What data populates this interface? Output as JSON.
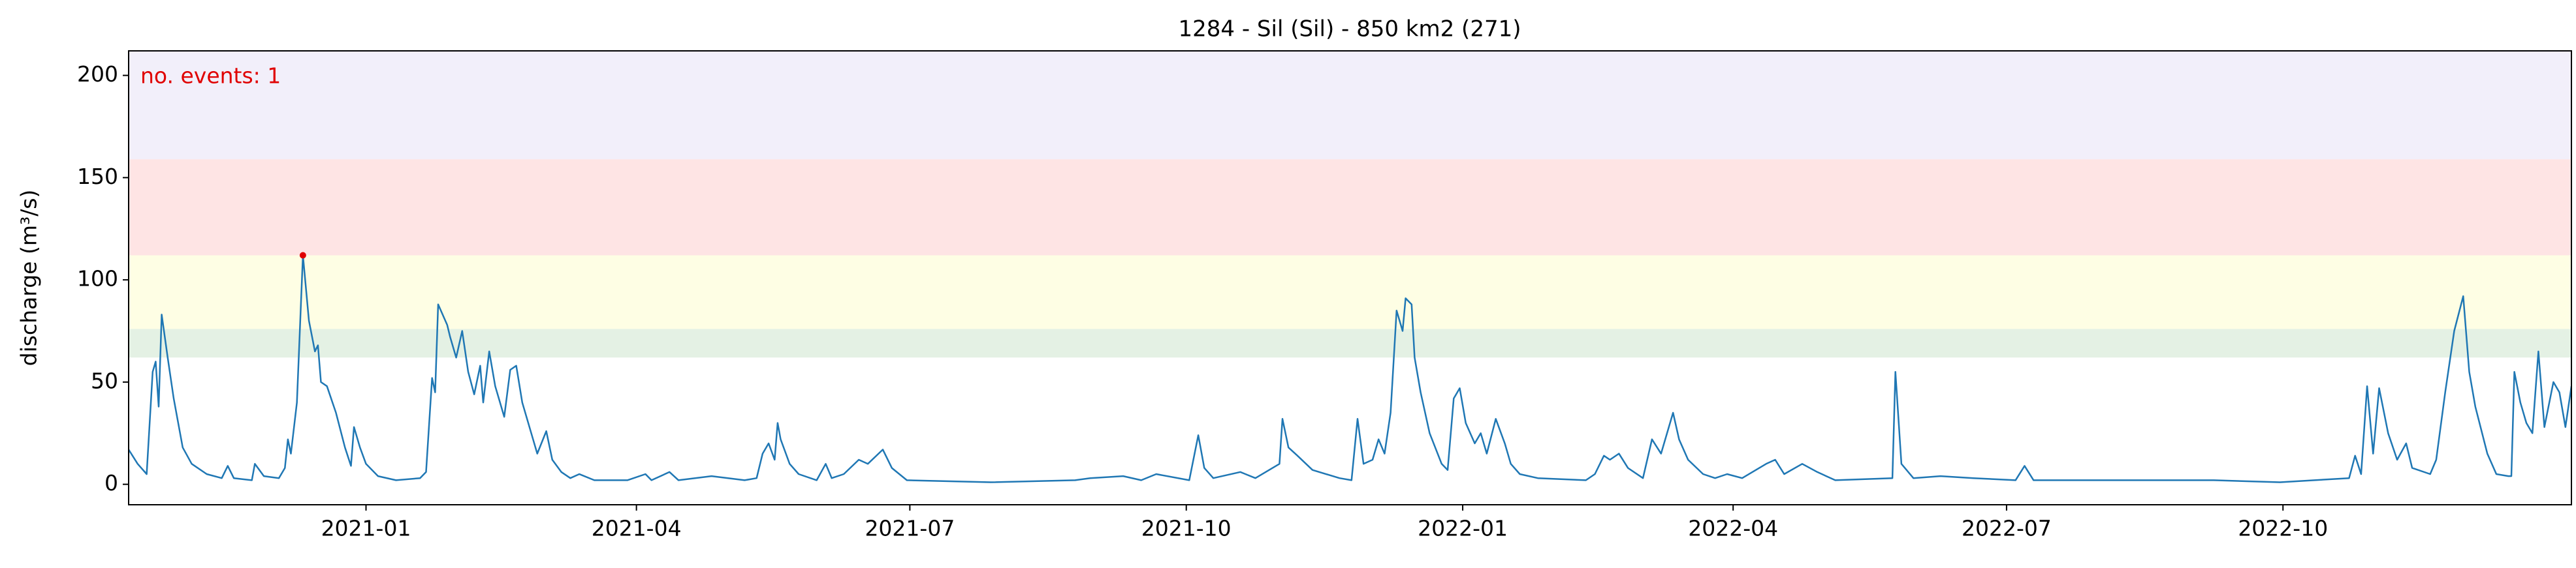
{
  "chart_data": {
    "type": "line",
    "title": "1284 - Sil (Sil) - 850 km2 (271)",
    "ylabel": "discharge (m³/s)",
    "annotation": "no. events: 1",
    "annotation_color": "#e00000",
    "xlim": [
      "2020-10-14",
      "2023-01-05"
    ],
    "xticks": [
      "2021-01",
      "2021-04",
      "2021-07",
      "2021-10",
      "2022-01",
      "2022-04",
      "2022-07",
      "2022-10"
    ],
    "ylim": [
      -10,
      212
    ],
    "yticks": [
      0,
      50,
      100,
      150,
      200
    ],
    "bands": [
      {
        "from": 62,
        "to": 76,
        "color": "#e4f1e4"
      },
      {
        "from": 76,
        "to": 112,
        "color": "#fefee4"
      },
      {
        "from": 112,
        "to": 159,
        "color": "#fee4e4"
      },
      {
        "from": 159,
        "to": 212,
        "color": "#f2effa"
      }
    ],
    "events": [
      {
        "x": "2020-12-11",
        "y": 112,
        "color": "#e00000"
      }
    ],
    "series": [
      {
        "color": "#1f77b4",
        "x": [
          "2020-10-14",
          "2020-10-17",
          "2020-10-20",
          "2020-10-22",
          "2020-10-23",
          "2020-10-24",
          "2020-10-25",
          "2020-10-27",
          "2020-10-29",
          "2020-11-01",
          "2020-11-04",
          "2020-11-09",
          "2020-11-14",
          "2020-11-16",
          "2020-11-18",
          "2020-11-24",
          "2020-11-25",
          "2020-11-28",
          "2020-12-03",
          "2020-12-05",
          "2020-12-06",
          "2020-12-07",
          "2020-12-09",
          "2020-12-11",
          "2020-12-13",
          "2020-12-15",
          "2020-12-16",
          "2020-12-17",
          "2020-12-19",
          "2020-12-22",
          "2020-12-25",
          "2020-12-27",
          "2020-12-28",
          "2020-12-30",
          "2021-01-01",
          "2021-01-05",
          "2021-01-11",
          "2021-01-19",
          "2021-01-21",
          "2021-01-23",
          "2021-01-24",
          "2021-01-25",
          "2021-01-28",
          "2021-01-29",
          "2021-01-31",
          "2021-02-02",
          "2021-02-04",
          "2021-02-06",
          "2021-02-08",
          "2021-02-09",
          "2021-02-11",
          "2021-02-13",
          "2021-02-16",
          "2021-02-18",
          "2021-02-20",
          "2021-02-22",
          "2021-02-25",
          "2021-02-27",
          "2021-03-02",
          "2021-03-04",
          "2021-03-07",
          "2021-03-10",
          "2021-03-13",
          "2021-03-18",
          "2021-03-29",
          "2021-04-04",
          "2021-04-06",
          "2021-04-12",
          "2021-04-15",
          "2021-04-26",
          "2021-05-07",
          "2021-05-11",
          "2021-05-13",
          "2021-05-15",
          "2021-05-17",
          "2021-05-18",
          "2021-05-19",
          "2021-05-22",
          "2021-05-25",
          "2021-05-31",
          "2021-06-03",
          "2021-06-05",
          "2021-06-09",
          "2021-06-14",
          "2021-06-17",
          "2021-06-22",
          "2021-06-25",
          "2021-06-30",
          "2021-07-28",
          "2021-08-25",
          "2021-08-30",
          "2021-09-10",
          "2021-09-16",
          "2021-09-21",
          "2021-10-02",
          "2021-10-05",
          "2021-10-07",
          "2021-10-10",
          "2021-10-19",
          "2021-10-24",
          "2021-11-01",
          "2021-11-02",
          "2021-11-04",
          "2021-11-07",
          "2021-11-12",
          "2021-11-21",
          "2021-11-25",
          "2021-11-27",
          "2021-11-29",
          "2021-12-02",
          "2021-12-04",
          "2021-12-06",
          "2021-12-08",
          "2021-12-10",
          "2021-12-12",
          "2021-12-13",
          "2021-12-15",
          "2021-12-16",
          "2021-12-18",
          "2021-12-21",
          "2021-12-25",
          "2021-12-27",
          "2021-12-29",
          "2021-12-31",
          "2022-01-02",
          "2022-01-05",
          "2022-01-07",
          "2022-01-09",
          "2022-01-12",
          "2022-01-15",
          "2022-01-17",
          "2022-01-20",
          "2022-01-26",
          "2022-02-11",
          "2022-02-14",
          "2022-02-17",
          "2022-02-19",
          "2022-02-22",
          "2022-02-25",
          "2022-03-02",
          "2022-03-05",
          "2022-03-08",
          "2022-03-12",
          "2022-03-14",
          "2022-03-17",
          "2022-03-22",
          "2022-03-26",
          "2022-03-30",
          "2022-04-04",
          "2022-04-12",
          "2022-04-15",
          "2022-04-18",
          "2022-04-24",
          "2022-04-29",
          "2022-05-05",
          "2022-05-24",
          "2022-05-25",
          "2022-05-27",
          "2022-05-31",
          "2022-06-09",
          "2022-06-20",
          "2022-07-04",
          "2022-07-07",
          "2022-07-10",
          "2022-08-17",
          "2022-09-08",
          "2022-09-30",
          "2022-10-23",
          "2022-10-25",
          "2022-10-27",
          "2022-10-29",
          "2022-10-31",
          "2022-11-02",
          "2022-11-05",
          "2022-11-08",
          "2022-11-11",
          "2022-11-13",
          "2022-11-19",
          "2022-11-21",
          "2022-11-24",
          "2022-11-27",
          "2022-11-30",
          "2022-12-02",
          "2022-12-04",
          "2022-12-08",
          "2022-12-11",
          "2022-12-15",
          "2022-12-16",
          "2022-12-17",
          "2022-12-19",
          "2022-12-21",
          "2022-12-23",
          "2022-12-25",
          "2022-12-27",
          "2022-12-30",
          "2023-01-01",
          "2023-01-03",
          "2023-01-05"
        ],
        "values": [
          17,
          10,
          5,
          55,
          60,
          38,
          83,
          62,
          42,
          18,
          10,
          5,
          3,
          9,
          3,
          2,
          10,
          4,
          3,
          8,
          22,
          15,
          40,
          112,
          80,
          65,
          68,
          50,
          48,
          35,
          18,
          9,
          28,
          18,
          10,
          4,
          2,
          3,
          6,
          52,
          45,
          88,
          78,
          72,
          62,
          75,
          55,
          44,
          58,
          40,
          65,
          48,
          33,
          56,
          58,
          40,
          25,
          15,
          26,
          12,
          6,
          3,
          5,
          2,
          2,
          5,
          2,
          6,
          2,
          4,
          2,
          3,
          15,
          20,
          12,
          30,
          22,
          10,
          5,
          2,
          10,
          3,
          5,
          12,
          10,
          17,
          8,
          2,
          1,
          2,
          3,
          4,
          2,
          5,
          2,
          24,
          8,
          3,
          6,
          3,
          10,
          32,
          18,
          14,
          7,
          3,
          2,
          32,
          10,
          12,
          22,
          15,
          35,
          85,
          75,
          91,
          88,
          62,
          45,
          25,
          10,
          7,
          42,
          47,
          30,
          20,
          25,
          15,
          32,
          20,
          10,
          5,
          3,
          2,
          5,
          14,
          12,
          15,
          8,
          3,
          22,
          15,
          35,
          22,
          12,
          5,
          3,
          5,
          3,
          10,
          12,
          5,
          10,
          6,
          2,
          3,
          55,
          10,
          3,
          4,
          3,
          2,
          9,
          2,
          2,
          2,
          1,
          3,
          14,
          5,
          48,
          15,
          47,
          25,
          12,
          20,
          8,
          5,
          12,
          45,
          75,
          92,
          55,
          38,
          15,
          5,
          4,
          4,
          55,
          40,
          30,
          25,
          65,
          28,
          50,
          45,
          28,
          48
        ]
      }
    ]
  }
}
